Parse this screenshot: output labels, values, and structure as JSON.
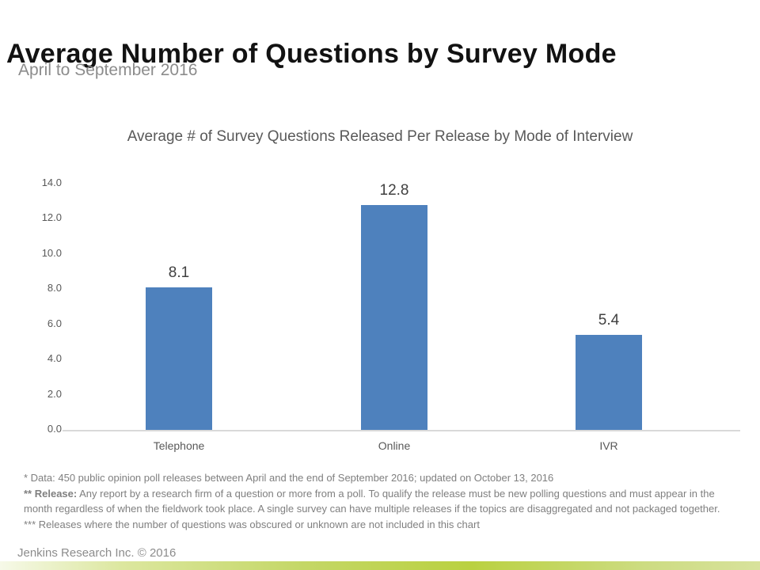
{
  "slide": {
    "title": "Average Number of Questions by Survey Mode",
    "subtitle": "April to September 2016",
    "footer": "Jenkins Research Inc. © 2016"
  },
  "chart_data": {
    "type": "bar",
    "title": "Average # of Survey Questions Released Per Release by Mode of Interview",
    "categories": [
      "Telephone",
      "Online",
      "IVR"
    ],
    "values": [
      8.1,
      12.8,
      5.4
    ],
    "value_labels": [
      "8.1",
      "12.8",
      "5.4"
    ],
    "ylim": [
      0,
      14
    ],
    "ytick_step": 2,
    "ytick_labels": [
      "0.0",
      "2.0",
      "4.0",
      "6.0",
      "8.0",
      "10.0",
      "12.0",
      "14.0"
    ],
    "bar_color": "#4E81BD",
    "axis_line_color": "#D9D9D9",
    "grid": false,
    "legend": false,
    "xlabel": "",
    "ylabel": ""
  },
  "footnotes": {
    "0": {
      "bold": "",
      "text": "* Data: 450 public opinion poll releases between April and the end of September 2016; updated on October 13, 2016"
    },
    "1": {
      "bold": "** Release:",
      "text": " Any report by a research firm of a question or more from a poll. To qualify the release must be new polling questions and must appear in the month regardless of when the fieldwork took place. A single survey can have multiple releases if the topics are disaggregated and not packaged together."
    },
    "2": {
      "bold": "",
      "text": "*** Releases where the number of questions was obscured or unknown are not included in this chart"
    }
  },
  "theme": {
    "title_color": "#121212",
    "subtitle_color": "#8C8C8C",
    "chart_text_color": "#595959",
    "data_label_color": "#404040",
    "footnote_color": "#7F7F7F",
    "bottom_bar_gradient": [
      [
        "#F6F9E8",
        0
      ],
      [
        "#DCE79F",
        16
      ],
      [
        "#C4D766",
        40
      ],
      [
        "#BAD140",
        62
      ],
      [
        "#CDDC82",
        85
      ],
      [
        "#D8E29C",
        100
      ]
    ]
  }
}
